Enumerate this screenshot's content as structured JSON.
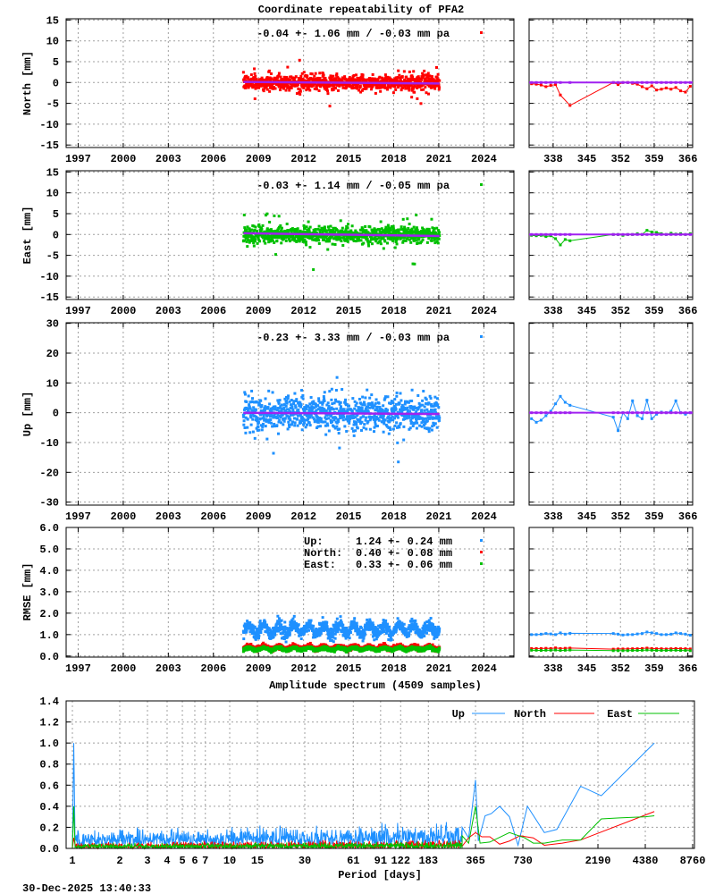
{
  "title": "Coordinate repeatability of PFA2",
  "timestamp": "30-Dec-2025 13:40:33",
  "colors": {
    "north": "#ff0000",
    "east": "#00c000",
    "up": "#1e90ff",
    "mean": "#a020f0"
  },
  "chart_data": [
    {
      "type": "scatter",
      "component": "north",
      "ylabel": "North [mm]",
      "legend": "-0.04 +- 1.06 mm / -0.03 mm pa",
      "ylim": [
        -15.6,
        15.3
      ],
      "yticks": [
        15,
        10,
        5,
        0,
        -5,
        -10,
        -15
      ],
      "xlim": [
        1996.2,
        2026.0
      ],
      "xticks": [
        1997,
        2000,
        2003,
        2006,
        2009,
        2012,
        2015,
        2018,
        2021,
        2024
      ],
      "data_span": [
        2008.0,
        2021.05
      ],
      "mean": -0.04,
      "std": 1.06,
      "rate_per_year": -0.03,
      "recent": {
        "xlim": [
          333,
          367
        ],
        "xticks": [
          338,
          345,
          352,
          359,
          366
        ],
        "x": [
          333.5,
          334.5,
          335.5,
          336.5,
          337.5,
          338.5,
          339.5,
          341.5,
          350.5,
          351.5,
          352.5,
          353.5,
          354.5,
          355.5,
          356.5,
          357.5,
          358.5,
          359.5,
          360.5,
          361.5,
          362.5,
          363.5,
          364.5,
          365.5,
          366.5
        ],
        "y": [
          -0.3,
          -0.4,
          -0.6,
          -1.0,
          -0.7,
          -0.5,
          -3.0,
          -5.5,
          0.0,
          -0.5,
          0.0,
          0.0,
          -0.2,
          -0.4,
          -1.0,
          -1.5,
          -0.8,
          -1.8,
          -1.6,
          -1.3,
          -1.6,
          -1.2,
          -2.0,
          -2.3,
          -0.9
        ]
      }
    },
    {
      "type": "scatter",
      "component": "east",
      "ylabel": "East [mm]",
      "legend": "-0.03 +- 1.14 mm / -0.05 mm pa",
      "ylim": [
        -15.6,
        15.3
      ],
      "yticks": [
        15,
        10,
        5,
        0,
        -5,
        -10,
        -15
      ],
      "xlim": [
        1996.2,
        2026.0
      ],
      "xticks": [
        1997,
        2000,
        2003,
        2006,
        2009,
        2012,
        2015,
        2018,
        2021,
        2024
      ],
      "data_span": [
        2008.0,
        2021.05
      ],
      "mean": -0.03,
      "std": 1.14,
      "rate_per_year": -0.05,
      "recent": {
        "xlim": [
          333,
          367
        ],
        "xticks": [
          338,
          345,
          352,
          359,
          366
        ],
        "x": [
          333.5,
          334.5,
          335.5,
          336.5,
          337.5,
          338.5,
          339.5,
          340.5,
          341.5,
          350.5,
          351.5,
          352.5,
          353.5,
          354.5,
          355.5,
          356.5,
          357.5,
          358.5,
          359.5,
          360.5,
          361.5,
          362.5,
          363.5,
          364.5,
          365.5,
          366.5
        ],
        "y": [
          -0.2,
          -0.3,
          -0.2,
          -0.5,
          -0.3,
          -1.0,
          -2.5,
          -1.2,
          -1.5,
          0.0,
          0.0,
          -0.2,
          0.0,
          0.0,
          0.2,
          0.0,
          1.0,
          0.6,
          0.5,
          0.2,
          0.0,
          0.3,
          0.1,
          0.2,
          0.0,
          0.2
        ]
      }
    },
    {
      "type": "scatter",
      "component": "up",
      "ylabel": "Up [mm]",
      "legend": "-0.23 +- 3.33 mm / -0.03 mm pa",
      "ylim": [
        -31,
        30.2
      ],
      "yticks": [
        30,
        20,
        10,
        0,
        -10,
        -20,
        -30
      ],
      "xlim": [
        1996.2,
        2026.0
      ],
      "xticks": [
        1997,
        2000,
        2003,
        2006,
        2009,
        2012,
        2015,
        2018,
        2021,
        2024
      ],
      "data_span": [
        2008.0,
        2021.05
      ],
      "mean": -0.23,
      "std": 3.33,
      "rate_per_year": -0.03,
      "recent": {
        "xlim": [
          333,
          367
        ],
        "xticks": [
          338,
          345,
          352,
          359,
          366
        ],
        "x": [
          333.5,
          334.5,
          335.5,
          336.5,
          337.5,
          338.5,
          339.5,
          340.5,
          341.5,
          350.5,
          351.5,
          352.5,
          353.5,
          354.5,
          355.5,
          356.5,
          357.5,
          358.5,
          359.5,
          360.5,
          361.5,
          362.5,
          363.5,
          364.5,
          365.5,
          366.5
        ],
        "y": [
          -2.0,
          -3.2,
          -2.5,
          -1.0,
          0.5,
          3.0,
          5.5,
          3.5,
          2.5,
          -1.5,
          -6.0,
          0.0,
          -2.0,
          4.0,
          -1.0,
          -2.0,
          4.2,
          -2.0,
          -0.5,
          0.2,
          0.0,
          0.5,
          4.0,
          0.0,
          -0.5,
          0.0
        ]
      }
    },
    {
      "type": "scatter",
      "component": "rmse",
      "ylabel": "RMSE [mm]",
      "ylim": [
        -0.05,
        6.0
      ],
      "yticks": [
        "6.0",
        "5.0",
        "4.0",
        "3.0",
        "2.0",
        "1.0",
        "0.0"
      ],
      "xlim": [
        1996.2,
        2026.0
      ],
      "xticks": [
        1997,
        2000,
        2003,
        2006,
        2009,
        2012,
        2015,
        2018,
        2021,
        2024
      ],
      "data_span": [
        2008.0,
        2021.05
      ],
      "legend": [
        {
          "label": "Up:",
          "value": "1.24 +- 0.24 mm",
          "series": "up",
          "mean": 1.24,
          "std": 0.24
        },
        {
          "label": "North:",
          "value": "0.40 +- 0.08 mm",
          "series": "north",
          "mean": 0.4,
          "std": 0.08
        },
        {
          "label": "East:",
          "value": "0.33 +- 0.06 mm",
          "series": "east",
          "mean": 0.33,
          "std": 0.06
        }
      ],
      "recent": {
        "xlim": [
          333,
          367
        ],
        "xticks": [
          338,
          345,
          352,
          359,
          366
        ],
        "x": [
          333.5,
          334.5,
          335.5,
          336.5,
          337.5,
          338.5,
          339.5,
          340.5,
          341.5,
          350.5,
          351.5,
          352.5,
          353.5,
          354.5,
          355.5,
          356.5,
          357.5,
          358.5,
          359.5,
          360.5,
          361.5,
          362.5,
          363.5,
          364.5,
          365.5,
          366.5
        ],
        "up": [
          1.0,
          1.0,
          1.02,
          1.05,
          1.03,
          1.0,
          1.08,
          1.02,
          1.06,
          1.05,
          1.02,
          0.98,
          1.0,
          1.0,
          1.03,
          1.05,
          1.12,
          1.08,
          1.05,
          1.0,
          1.0,
          1.02,
          1.08,
          1.05,
          1.02,
          0.97
        ],
        "north": [
          0.35,
          0.35,
          0.35,
          0.36,
          0.35,
          0.38,
          0.35,
          0.36,
          0.37,
          0.32,
          0.33,
          0.33,
          0.33,
          0.34,
          0.34,
          0.35,
          0.37,
          0.35,
          0.34,
          0.34,
          0.33,
          0.34,
          0.35,
          0.34,
          0.34,
          0.33
        ],
        "east": [
          0.27,
          0.27,
          0.26,
          0.27,
          0.27,
          0.28,
          0.26,
          0.27,
          0.28,
          0.25,
          0.25,
          0.25,
          0.25,
          0.26,
          0.26,
          0.27,
          0.28,
          0.27,
          0.26,
          0.26,
          0.26,
          0.27,
          0.27,
          0.26,
          0.26,
          0.25
        ]
      }
    },
    {
      "type": "line",
      "title": "Amplitude spectrum (4509 samples)",
      "xlabel": "Period [days]",
      "xscale": "log",
      "xlim": [
        1,
        8760
      ],
      "xticks": [
        1,
        2,
        3,
        4,
        5,
        6,
        7,
        10,
        15,
        30,
        61,
        91,
        122,
        183,
        365,
        730,
        2190,
        4380,
        8760
      ],
      "ylim": [
        0,
        1.4
      ],
      "yticks": [
        "1.4",
        "1.2",
        "1.0",
        "0.8",
        "0.6",
        "0.4",
        "0.2",
        "0.0"
      ],
      "legend_position": "top-right",
      "series": [
        {
          "name": "Up",
          "color": "up",
          "short_period_peak": 1.0,
          "noise_level": [
            0.05,
            0.25
          ],
          "x": [
            300,
            330,
            365,
            380,
            420,
            460,
            520,
            600,
            680,
            780,
            1000,
            1200,
            1700,
            2300,
            5000
          ],
          "y": [
            0.2,
            0.1,
            0.65,
            0.07,
            0.31,
            0.33,
            0.4,
            0.3,
            0.03,
            0.4,
            0.15,
            0.18,
            0.59,
            0.5,
            1.0
          ]
        },
        {
          "name": "North",
          "color": "north",
          "short_period_peak": 0.1,
          "noise_level": [
            0.0,
            0.1
          ],
          "x": [
            300,
            330,
            365,
            400,
            450,
            520,
            600,
            700,
            850,
            1000,
            1300,
            1700,
            5000
          ],
          "y": [
            0.02,
            0.1,
            0.15,
            0.11,
            0.11,
            0.04,
            0.07,
            0.12,
            0.1,
            0.03,
            0.05,
            0.08,
            0.35
          ]
        },
        {
          "name": "East",
          "color": "east",
          "short_period_peak": 0.4,
          "noise_level": [
            0.0,
            0.08
          ],
          "x": [
            300,
            330,
            365,
            390,
            450,
            600,
            750,
            850,
            1000,
            1300,
            1700,
            2300,
            3000,
            4400,
            5000
          ],
          "y": [
            0.12,
            0.05,
            0.4,
            0.05,
            0.06,
            0.15,
            0.1,
            0.05,
            0.05,
            0.08,
            0.08,
            0.28,
            0.29,
            0.3,
            0.31
          ]
        }
      ]
    }
  ]
}
